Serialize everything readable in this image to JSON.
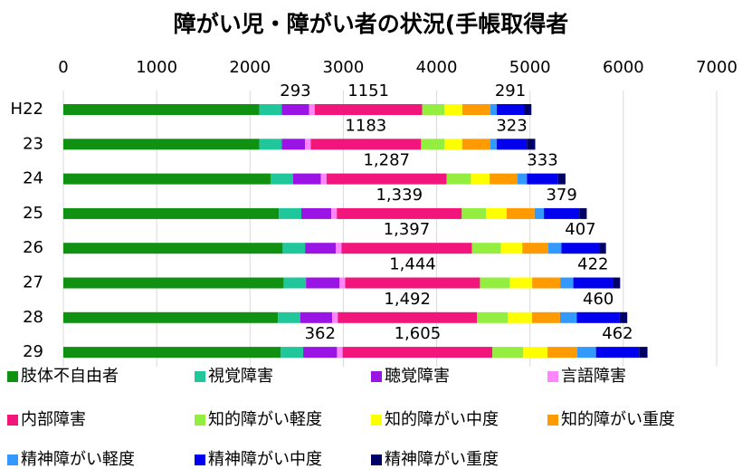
{
  "chart_data": {
    "type": "stacked_bar_horizontal",
    "title": "障がい児・障がい者の状況(手帳取得者",
    "categories": [
      "H22",
      "23",
      "24",
      "25",
      "26",
      "27",
      "28",
      "29"
    ],
    "xlim": [
      0,
      7000
    ],
    "xticks": [
      0,
      1000,
      2000,
      3000,
      4000,
      5000,
      6000,
      7000
    ],
    "grid": true,
    "legend": "bottom",
    "series": [
      {
        "name": "肢体不自由者",
        "color": "#119111",
        "values": [
          2100,
          2100,
          2220,
          2310,
          2350,
          2360,
          2300,
          2330
        ]
      },
      {
        "name": "視覚障害",
        "color": "#1fc79b",
        "values": [
          240,
          240,
          240,
          240,
          240,
          240,
          240,
          240
        ]
      },
      {
        "name": "聴覚障害",
        "color": "#9b14e6",
        "values": [
          293,
          250,
          300,
          320,
          330,
          360,
          340,
          362
        ],
        "value_labels": [
          "293",
          null,
          null,
          null,
          null,
          null,
          null,
          "362"
        ],
        "label_color": "#7a2fc0"
      },
      {
        "name": "言語障害",
        "color": "#ff85ff",
        "values": [
          60,
          60,
          60,
          60,
          60,
          60,
          60,
          60
        ]
      },
      {
        "name": "内部障害",
        "color": "#f2167c",
        "values": [
          1151,
          1183,
          1287,
          1339,
          1397,
          1444,
          1492,
          1605
        ],
        "value_labels": [
          "1151",
          "1183",
          "1,287",
          "1,339",
          "1,397",
          "1,444",
          "1,492",
          "1,605"
        ],
        "label_color": "#e8136f"
      },
      {
        "name": "知的障がい軽度",
        "color": "#93ee40",
        "values": [
          240,
          250,
          260,
          260,
          310,
          320,
          330,
          330
        ]
      },
      {
        "name": "知的障がい中度",
        "color": "#ffff00",
        "values": [
          190,
          190,
          200,
          220,
          230,
          240,
          260,
          260
        ]
      },
      {
        "name": "知的障がい重度",
        "color": "#ff9a00",
        "values": [
          300,
          300,
          300,
          300,
          280,
          300,
          300,
          320
        ]
      },
      {
        "name": "精神障がい軽度",
        "color": "#3399ff",
        "values": [
          70,
          70,
          100,
          100,
          140,
          140,
          180,
          200
        ]
      },
      {
        "name": "精神障がい中度",
        "color": "#0000ee",
        "values": [
          291,
          323,
          333,
          379,
          407,
          422,
          460,
          462
        ],
        "value_labels": [
          "291",
          "323",
          "333",
          "379",
          "407",
          "422",
          "460",
          "462"
        ],
        "label_color": "#1a1ae0"
      },
      {
        "name": "精神障がい重度",
        "color": "#000066",
        "values": [
          80,
          90,
          80,
          80,
          70,
          80,
          80,
          90
        ]
      }
    ]
  }
}
